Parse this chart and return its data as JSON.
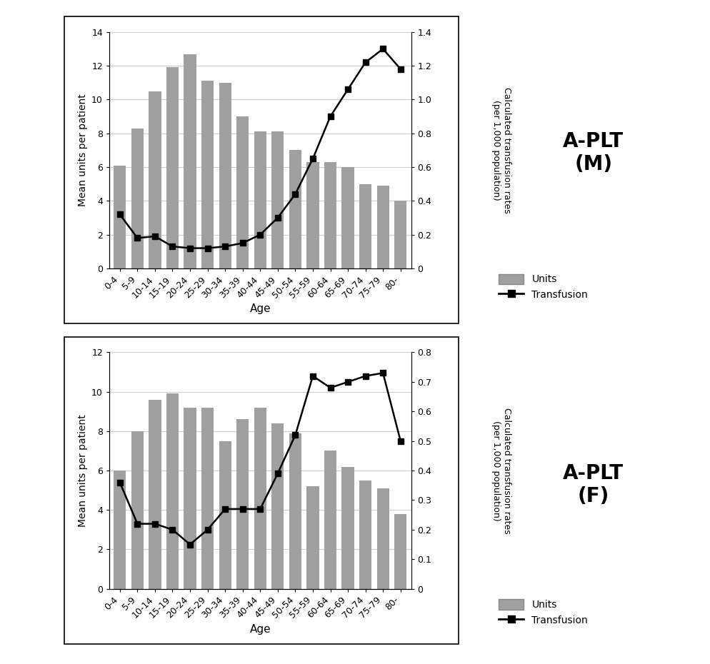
{
  "age_labels": [
    "0-4",
    "5-9",
    "10-14",
    "15-19",
    "20-24",
    "25-29",
    "30-34",
    "35-39",
    "40-44",
    "45-49",
    "50-54",
    "55-59",
    "60-64",
    "65-69",
    "70-74",
    "75-79",
    "80-"
  ],
  "male_bars": [
    6.1,
    8.3,
    10.5,
    11.9,
    12.7,
    11.1,
    11.0,
    9.0,
    8.1,
    8.1,
    7.0,
    6.3,
    6.3,
    6.0,
    5.0,
    4.9,
    4.0
  ],
  "male_line": [
    0.32,
    0.18,
    0.19,
    0.13,
    0.12,
    0.12,
    0.13,
    0.15,
    0.2,
    0.3,
    0.44,
    0.65,
    0.9,
    1.06,
    1.22,
    1.3,
    1.18
  ],
  "female_bars": [
    6.0,
    8.0,
    9.6,
    9.9,
    9.2,
    9.2,
    7.5,
    8.6,
    9.2,
    8.4,
    7.9,
    5.2,
    7.0,
    6.2,
    5.5,
    5.1,
    3.8
  ],
  "female_line": [
    0.36,
    0.22,
    0.22,
    0.2,
    0.15,
    0.2,
    0.27,
    0.27,
    0.27,
    0.39,
    0.52,
    0.72,
    0.68,
    0.7,
    0.72,
    0.73,
    0.5
  ],
  "male_ylim_bar": [
    0,
    14
  ],
  "male_ylim_line": [
    0,
    1.4
  ],
  "male_yticks_bar": [
    0,
    2,
    4,
    6,
    8,
    10,
    12,
    14
  ],
  "male_yticks_line": [
    0,
    0.2,
    0.4,
    0.6,
    0.8,
    1.0,
    1.2,
    1.4
  ],
  "female_ylim_bar": [
    0,
    12
  ],
  "female_ylim_line": [
    0,
    0.8
  ],
  "female_yticks_bar": [
    0,
    2,
    4,
    6,
    8,
    10,
    12
  ],
  "female_yticks_line": [
    0,
    0.1,
    0.2,
    0.3,
    0.4,
    0.5,
    0.6,
    0.7,
    0.8
  ],
  "bar_color": "#a0a0a0",
  "line_color": "#000000",
  "title_male": "A-PLT\n(M)",
  "title_female": "A-PLT\n(F)",
  "ylabel_left": "Mean units per patient",
  "ylabel_right_line1": "Calculated transfusion rates",
  "ylabel_right_line2": "(per 1,000 population)",
  "xlabel": "Age",
  "legend_bar": "Units",
  "legend_line": "Transfusion",
  "bg_color": "#ffffff",
  "grid_color": "#cccccc",
  "panel_border_color": "#000000"
}
